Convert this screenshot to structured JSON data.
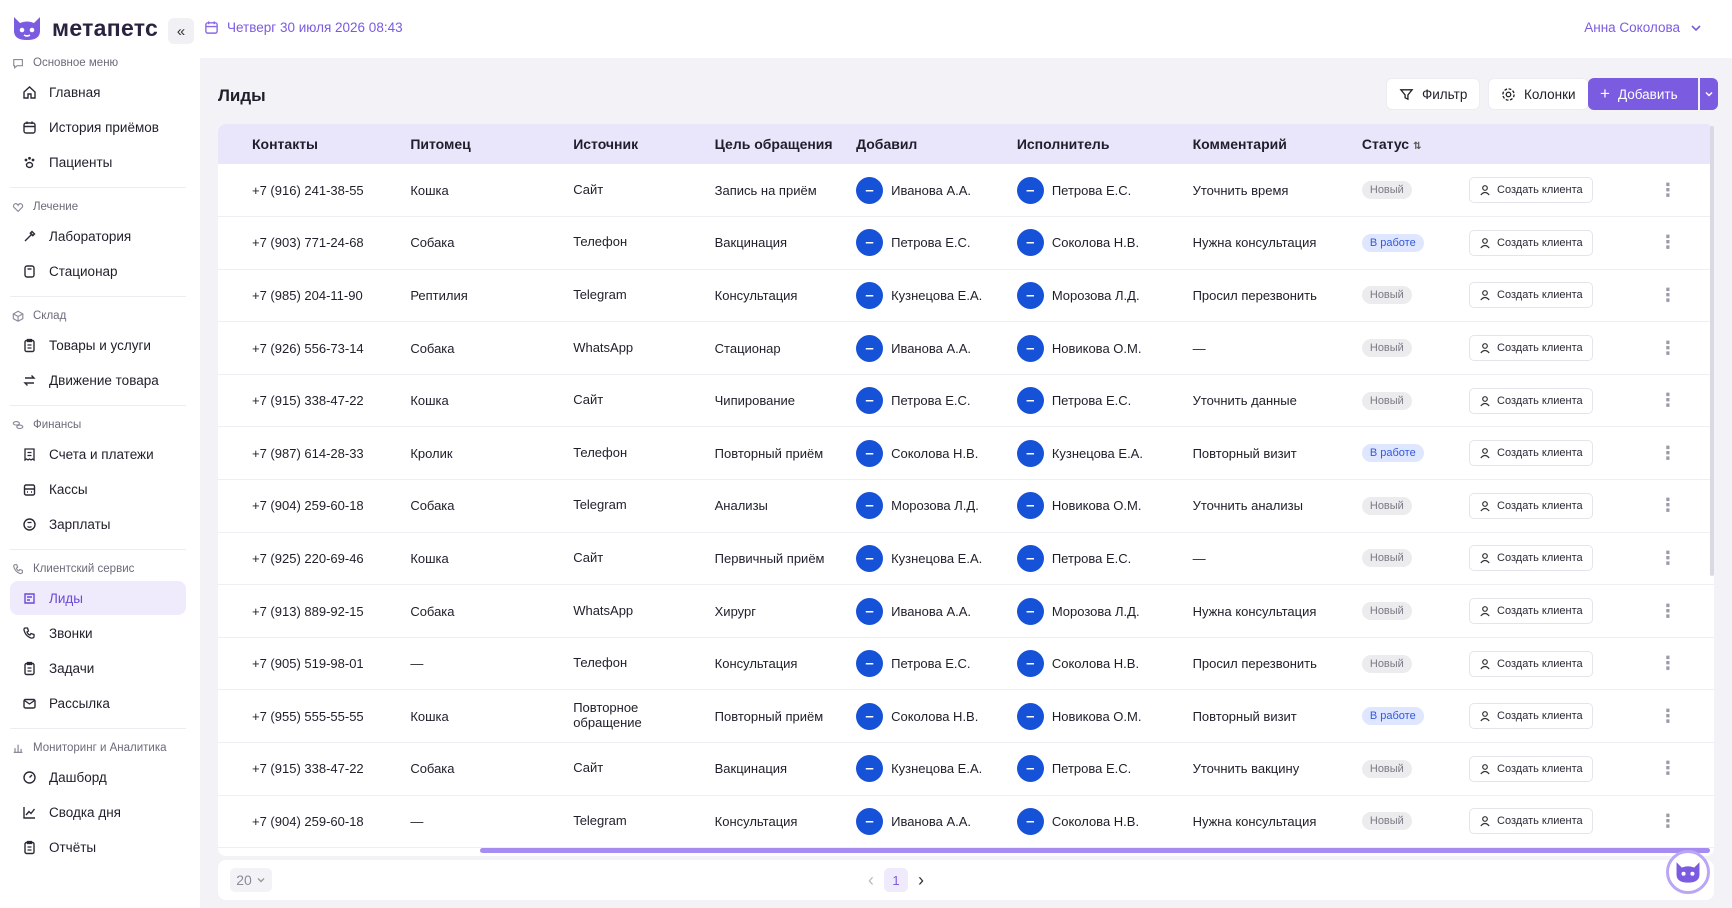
{
  "brand": {
    "name": "метапетс"
  },
  "topbar": {
    "date": "Четверг 30 июля 2026 08:43",
    "user_name": "Анна Соколова"
  },
  "sidebar": {
    "sections": [
      {
        "title": "Основное меню",
        "icon": "chat-icon",
        "items": [
          {
            "label": "Главная",
            "icon": "home-icon"
          },
          {
            "label": "История приёмов",
            "icon": "calendar-icon"
          },
          {
            "label": "Пациенты",
            "icon": "paw-icon"
          }
        ]
      },
      {
        "title": "Лечение",
        "icon": "heart-icon",
        "items": [
          {
            "label": "Лаборатория",
            "icon": "pipette-icon"
          },
          {
            "label": "Стационар",
            "icon": "bed-icon"
          }
        ]
      },
      {
        "title": "Склад",
        "icon": "box-icon",
        "items": [
          {
            "label": "Товары и услуги",
            "icon": "clipboard-icon"
          },
          {
            "label": "Движение товара",
            "icon": "swap-icon"
          }
        ]
      },
      {
        "title": "Финансы",
        "icon": "coins-icon",
        "items": [
          {
            "label": "Счета и платежи",
            "icon": "receipt-icon"
          },
          {
            "label": "Кассы",
            "icon": "register-icon"
          },
          {
            "label": "Зарплаты",
            "icon": "money-icon"
          }
        ]
      },
      {
        "title": "Клиентский сервис",
        "icon": "phone-icon",
        "items": [
          {
            "label": "Лиды",
            "icon": "lead-icon",
            "active": true
          },
          {
            "label": "Звонки",
            "icon": "phone-icon"
          },
          {
            "label": "Задачи",
            "icon": "clipboard-icon"
          },
          {
            "label": "Рассылка",
            "icon": "mail-icon"
          }
        ]
      },
      {
        "title": "Мониторинг и Аналитика",
        "icon": "chart-icon",
        "items": [
          {
            "label": "Дашборд",
            "icon": "gauge-icon"
          },
          {
            "label": "Сводка дня",
            "icon": "trend-icon"
          },
          {
            "label": "Отчёты",
            "icon": "clipboard-icon"
          }
        ]
      }
    ]
  },
  "page": {
    "title": "Лиды",
    "filter_label": "Фильтр",
    "columns_label": "Колонки",
    "add_label": "Добавить"
  },
  "table": {
    "headers": [
      "Контакты",
      "Питомец",
      "Источник",
      "Цель обращения",
      "Добавил",
      "Исполнитель",
      "Комментарий",
      "Статус"
    ],
    "action_label": "Создать клиента",
    "avatar_glyph": "–",
    "rows": [
      {
        "contact": "+7 (916) 241-38-55",
        "pet": "Кошка",
        "source": "Сайт",
        "goal": "Запись на приём",
        "added_by": "Иванова А.А.",
        "assignee": "Петрова Е.С.",
        "comment": "Уточнить время",
        "status": "Новый",
        "status_type": "new"
      },
      {
        "contact": "+7 (903) 771-24-68",
        "pet": "Собака",
        "source": "Телефон",
        "goal": "Вакцинация",
        "added_by": "Петрова Е.С.",
        "assignee": "Соколова Н.В.",
        "comment": "Нужна консультация",
        "status": "В работе",
        "status_type": "work"
      },
      {
        "contact": "+7 (985) 204-11-90",
        "pet": "Рептилия",
        "source": "Telegram",
        "goal": "Консультация",
        "added_by": "Кузнецова Е.А.",
        "assignee": "Морозова Л.Д.",
        "comment": "Просил перезвонить",
        "status": "Новый",
        "status_type": "new"
      },
      {
        "contact": "+7 (926) 556-73-14",
        "pet": "Собака",
        "source": "WhatsApp",
        "goal": "Стационар",
        "added_by": "Иванова А.А.",
        "assignee": "Новикова О.М.",
        "comment": "—",
        "status": "Новый",
        "status_type": "new"
      },
      {
        "contact": "+7 (915) 338-47-22",
        "pet": "Кошка",
        "source": "Сайт",
        "goal": "Чипирование",
        "added_by": "Петрова Е.С.",
        "assignee": "Петрова Е.С.",
        "comment": "Уточнить данные",
        "status": "Новый",
        "status_type": "new"
      },
      {
        "contact": "+7 (987) 614-28-33",
        "pet": "Кролик",
        "source": "Телефон",
        "goal": "Повторный приём",
        "added_by": "Соколова Н.В.",
        "assignee": "Кузнецова Е.А.",
        "comment": "Повторный визит",
        "status": "В работе",
        "status_type": "work"
      },
      {
        "contact": "+7 (904) 259-60-18",
        "pet": "Собака",
        "source": "Telegram",
        "goal": "Анализы",
        "added_by": "Морозова Л.Д.",
        "assignee": "Новикова О.М.",
        "comment": "Уточнить анализы",
        "status": "Новый",
        "status_type": "new"
      },
      {
        "contact": "+7 (925) 220-69-46",
        "pet": "Кошка",
        "source": "Сайт",
        "goal": "Первичный приём",
        "added_by": "Кузнецова Е.А.",
        "assignee": "Петрова Е.С.",
        "comment": "—",
        "status": "Новый",
        "status_type": "new"
      },
      {
        "contact": "+7 (913) 889-92-15",
        "pet": "Собака",
        "source": "WhatsApp",
        "goal": "Хирург",
        "added_by": "Иванова А.А.",
        "assignee": "Морозова Л.Д.",
        "comment": "Нужна консультация",
        "status": "Новый",
        "status_type": "new"
      },
      {
        "contact": "+7 (905) 519-98-01",
        "pet": "—",
        "source": "Телефон",
        "goal": "Консультация",
        "added_by": "Петрова Е.С.",
        "assignee": "Соколова Н.В.",
        "comment": "Просил перезвонить",
        "status": "Новый",
        "status_type": "new"
      },
      {
        "contact": "+7 (955) 555-55-55",
        "pet": "Кошка",
        "source": "Повторное обращение",
        "goal": "Повторный приём",
        "added_by": "Соколова Н.В.",
        "assignee": "Новикова О.М.",
        "comment": "Повторный визит",
        "status": "В работе",
        "status_type": "work"
      },
      {
        "contact": "+7 (915) 338-47-22",
        "pet": "Собака",
        "source": "Сайт",
        "goal": "Вакцинация",
        "added_by": "Кузнецова Е.А.",
        "assignee": "Петрова Е.С.",
        "comment": "Уточнить вакцину",
        "status": "Новый",
        "status_type": "new"
      },
      {
        "contact": "+7 (904) 259-60-18",
        "pet": "—",
        "source": "Telegram",
        "goal": "Консультация",
        "added_by": "Иванова А.А.",
        "assignee": "Соколова Н.В.",
        "comment": "Нужна консультация",
        "status": "Новый",
        "status_type": "new"
      }
    ]
  },
  "footer": {
    "page_size": "20",
    "current_page": "1"
  },
  "colors": {
    "accent": "#7b5be0",
    "avatar": "#1652d8",
    "header_bg": "#e9e5fb"
  }
}
